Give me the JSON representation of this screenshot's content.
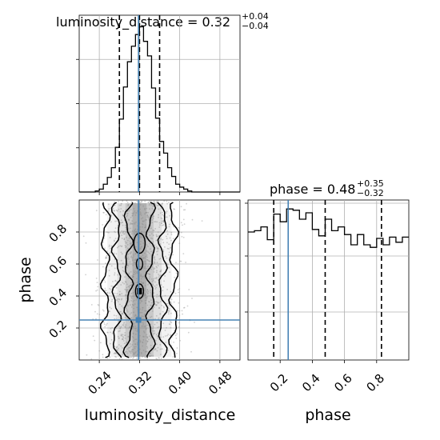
{
  "chart_data": {
    "type": "corner",
    "parameters": [
      "luminosity_distance",
      "phase"
    ],
    "truths": {
      "luminosity_distance": 0.318,
      "phase": 0.25
    },
    "luminosity_distance": {
      "title": {
        "name": "luminosity_distance",
        "median": "0.32",
        "plus": "+0.04",
        "minus": "−0.04"
      },
      "quantiles": [
        0.28,
        0.32,
        0.36
      ],
      "range": [
        0.2,
        0.52
      ],
      "ticks": [
        0.24,
        0.32,
        0.4,
        0.48
      ],
      "tick_labels": [
        "0.24",
        "0.32",
        "0.40",
        "0.48"
      ],
      "histogram": {
        "bin_edges": [
          0.2,
          0.208,
          0.216,
          0.224,
          0.232,
          0.24,
          0.248,
          0.256,
          0.264,
          0.272,
          0.28,
          0.288,
          0.296,
          0.304,
          0.312,
          0.32,
          0.328,
          0.336,
          0.344,
          0.352,
          0.36,
          0.368,
          0.376,
          0.384,
          0.392,
          0.4,
          0.408,
          0.416,
          0.424,
          0.432,
          0.44,
          0.448,
          0.456,
          0.464,
          0.472,
          0.48,
          0.488,
          0.496,
          0.504,
          0.512,
          0.52
        ],
        "counts": [
          0,
          0,
          0,
          0,
          1,
          3,
          8,
          15,
          25,
          46,
          75,
          108,
          134,
          150,
          162,
          170,
          155,
          140,
          107,
          76,
          52,
          40,
          25,
          16,
          8,
          5,
          3,
          1,
          0,
          0,
          0,
          0,
          0,
          0,
          0,
          0,
          0,
          0,
          0,
          0
        ]
      }
    },
    "phase": {
      "title": {
        "name": "phase",
        "median": "0.48",
        "plus": "+0.35",
        "minus": "−0.32"
      },
      "quantiles": [
        0.16,
        0.48,
        0.83
      ],
      "range": [
        0.0,
        1.0
      ],
      "ticks": [
        0.2,
        0.4,
        0.6,
        0.8
      ],
      "tick_labels": [
        "0.2",
        "0.4",
        "0.6",
        "0.8"
      ],
      "histogram": {
        "bin_edges": [
          0,
          0.04,
          0.08,
          0.12,
          0.16,
          0.2,
          0.24,
          0.28,
          0.32,
          0.36,
          0.4,
          0.44,
          0.48,
          0.52,
          0.56,
          0.6,
          0.64,
          0.68,
          0.72,
          0.76,
          0.8,
          0.84,
          0.88,
          0.92,
          0.96,
          1.0
        ],
        "counts": [
          100,
          101,
          104,
          94,
          114,
          108,
          118,
          117,
          110,
          115,
          102,
          97,
          110,
          101,
          104,
          98,
          90,
          98,
          90,
          88,
          95,
          90,
          96,
          92,
          96
        ]
      }
    },
    "xlabels": [
      "luminosity_distance",
      "phase"
    ],
    "ylabel": "phase",
    "grid": true,
    "colors": {
      "truth": "#4682b4",
      "hist": "#000000",
      "contour": "#000000",
      "density": "#808080",
      "grid": "#b0b0b0"
    }
  }
}
